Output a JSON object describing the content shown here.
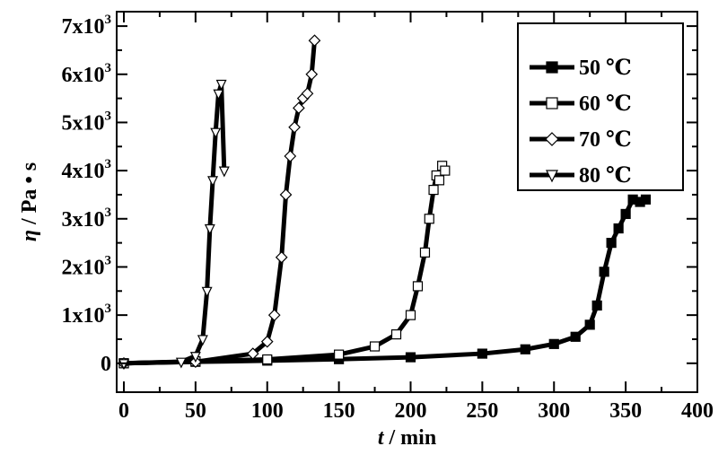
{
  "chart_data": {
    "type": "line",
    "xlabel_italic": "t",
    "xlabel_rest": " / min",
    "ylabel_greek": "η",
    "ylabel_rest": " / Pa • s",
    "xlim": [
      -5,
      400
    ],
    "ylim": [
      -600,
      7300
    ],
    "xticks": [
      0,
      50,
      100,
      150,
      200,
      250,
      300,
      350,
      400
    ],
    "yticks": [
      {
        "value": 0,
        "base": "0",
        "exp": ""
      },
      {
        "value": 1000,
        "base": "1x10",
        "exp": "3"
      },
      {
        "value": 2000,
        "base": "2x10",
        "exp": "3"
      },
      {
        "value": 3000,
        "base": "3x10",
        "exp": "3"
      },
      {
        "value": 4000,
        "base": "4x10",
        "exp": "3"
      },
      {
        "value": 5000,
        "base": "5x10",
        "exp": "3"
      },
      {
        "value": 6000,
        "base": "6x10",
        "exp": "3"
      },
      {
        "value": 7000,
        "base": "7x10",
        "exp": "3"
      }
    ],
    "legend_position": "top-right",
    "series": [
      {
        "name": "50 ℃",
        "marker": "square-filled",
        "x": [
          0,
          50,
          100,
          150,
          200,
          250,
          280,
          300,
          315,
          325,
          330,
          335,
          340,
          345,
          350,
          355,
          360,
          364
        ],
        "y": [
          0,
          30,
          55,
          85,
          125,
          200,
          290,
          400,
          550,
          800,
          1200,
          1900,
          2500,
          2800,
          3100,
          3400,
          3350,
          3400
        ]
      },
      {
        "name": "60 ℃",
        "marker": "square-open",
        "x": [
          0,
          50,
          100,
          150,
          175,
          190,
          200,
          205,
          210,
          213,
          216,
          218,
          220,
          222,
          224
        ],
        "y": [
          0,
          40,
          80,
          180,
          350,
          600,
          1000,
          1600,
          2300,
          3000,
          3600,
          3900,
          3800,
          4100,
          4000
        ]
      },
      {
        "name": "70 ℃",
        "marker": "diamond-open",
        "x": [
          0,
          50,
          90,
          100,
          105,
          110,
          113,
          116,
          119,
          122,
          125,
          128,
          131,
          133
        ],
        "y": [
          0,
          30,
          200,
          450,
          1000,
          2200,
          3500,
          4300,
          4900,
          5300,
          5500,
          5600,
          6000,
          6700
        ]
      },
      {
        "name": "80 ℃",
        "marker": "triangle-down-open",
        "x": [
          0,
          40,
          50,
          55,
          58,
          60,
          62,
          64,
          66,
          68,
          70
        ],
        "y": [
          0,
          30,
          150,
          500,
          1500,
          2800,
          3800,
          4800,
          5600,
          5800,
          4000
        ]
      }
    ]
  }
}
